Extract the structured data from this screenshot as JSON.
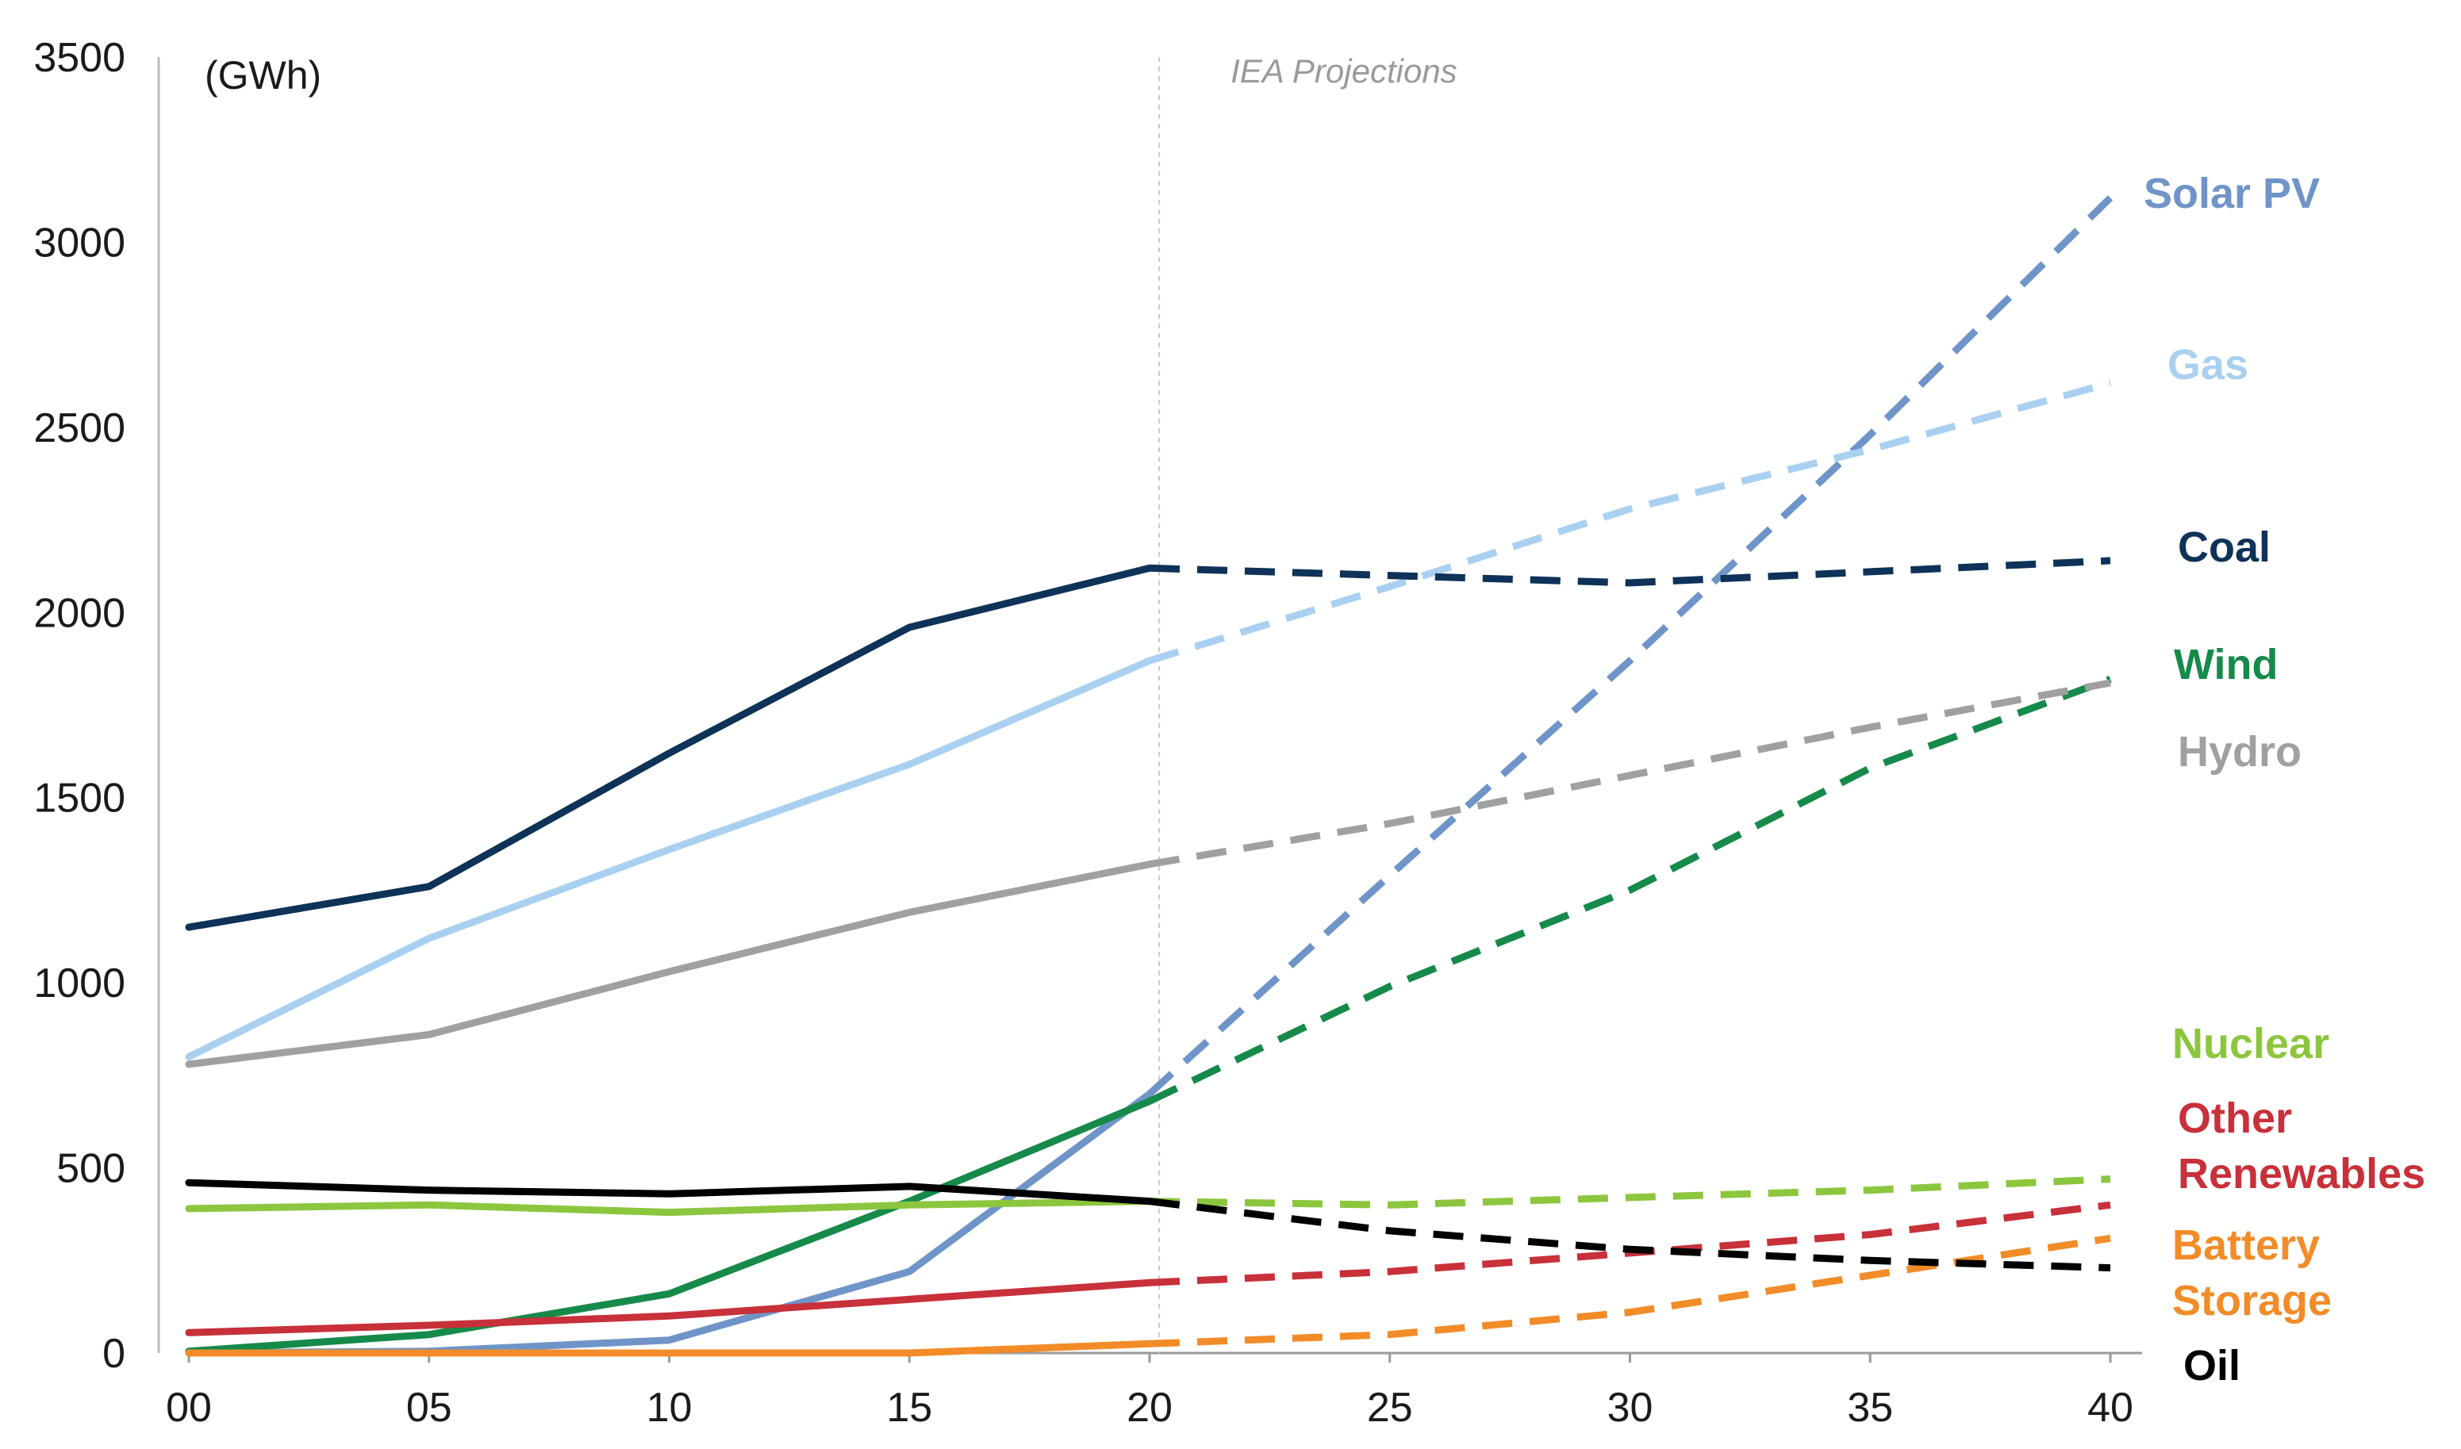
{
  "chart_data": {
    "type": "line",
    "title": "",
    "unit_label": "(GWh)",
    "xlabel": "",
    "ylabel": "",
    "ylim": [
      0,
      3500
    ],
    "xlim": [
      2000,
      2040
    ],
    "y_ticks": [
      "0",
      "500",
      "1000",
      "1500",
      "2000",
      "2500",
      "3000",
      "3500"
    ],
    "x_ticks": [
      "00",
      "05",
      "10",
      "15",
      "20",
      "25",
      "30",
      "35",
      "40"
    ],
    "projection_start": 2020.2,
    "annotation": "IEA Projections",
    "grid": false,
    "series": [
      {
        "name": "Solar PV",
        "color": "#6f94c8",
        "label_lines": [
          "Solar PV"
        ],
        "historical": {
          "x": [
            2000,
            2005,
            2010,
            2015,
            2020
          ],
          "y": [
            0,
            5,
            35,
            220,
            700
          ]
        },
        "projected": {
          "x": [
            2020,
            2025,
            2030,
            2035,
            2040
          ],
          "y": [
            700,
            1290,
            1870,
            2480,
            3120
          ]
        }
      },
      {
        "name": "Gas",
        "color": "#a9d0f0",
        "label_lines": [
          "Gas"
        ],
        "historical": {
          "x": [
            2000,
            2005,
            2010,
            2015,
            2020
          ],
          "y": [
            800,
            1120,
            1360,
            1590,
            1870
          ]
        },
        "projected": {
          "x": [
            2020,
            2025,
            2030,
            2035,
            2040
          ],
          "y": [
            1870,
            2070,
            2280,
            2440,
            2620
          ]
        }
      },
      {
        "name": "Coal",
        "color": "#0e3258",
        "label_lines": [
          "Coal"
        ],
        "historical": {
          "x": [
            2000,
            2005,
            2010,
            2015,
            2020
          ],
          "y": [
            1150,
            1260,
            1620,
            1960,
            2120
          ]
        },
        "projected": {
          "x": [
            2020,
            2025,
            2030,
            2035,
            2040
          ],
          "y": [
            2120,
            2100,
            2080,
            2110,
            2140
          ]
        }
      },
      {
        "name": "Wind",
        "color": "#168a4a",
        "label_lines": [
          "Wind"
        ],
        "historical": {
          "x": [
            2000,
            2005,
            2010,
            2015,
            2020
          ],
          "y": [
            5,
            50,
            160,
            410,
            680
          ]
        },
        "projected": {
          "x": [
            2020,
            2025,
            2030,
            2035,
            2040
          ],
          "y": [
            680,
            990,
            1250,
            1580,
            1820
          ]
        }
      },
      {
        "name": "Hydro",
        "color": "#a0a0a0",
        "label_lines": [
          "Hydro"
        ],
        "historical": {
          "x": [
            2000,
            2005,
            2010,
            2015,
            2020
          ],
          "y": [
            780,
            860,
            1030,
            1190,
            1320
          ]
        },
        "projected": {
          "x": [
            2020,
            2025,
            2030,
            2035,
            2040
          ],
          "y": [
            1320,
            1430,
            1560,
            1690,
            1810
          ]
        }
      },
      {
        "name": "Nuclear",
        "color": "#8cc63f",
        "label_lines": [
          "Nuclear"
        ],
        "historical": {
          "x": [
            2000,
            2005,
            2010,
            2015,
            2020
          ],
          "y": [
            390,
            400,
            380,
            400,
            410
          ]
        },
        "projected": {
          "x": [
            2020,
            2025,
            2030,
            2035,
            2040
          ],
          "y": [
            410,
            400,
            420,
            440,
            470
          ]
        }
      },
      {
        "name": "Other Renewables",
        "color": "#c8303a",
        "label_lines": [
          "Other",
          "Renewables"
        ],
        "historical": {
          "x": [
            2000,
            2005,
            2010,
            2015,
            2020
          ],
          "y": [
            55,
            75,
            100,
            145,
            190
          ]
        },
        "projected": {
          "x": [
            2020,
            2025,
            2030,
            2035,
            2040
          ],
          "y": [
            190,
            220,
            270,
            320,
            400
          ]
        }
      },
      {
        "name": "Battery Storage",
        "color": "#f28c28",
        "label_lines": [
          "Battery",
          "Storage"
        ],
        "historical": {
          "x": [
            2000,
            2005,
            2010,
            2015,
            2020
          ],
          "y": [
            0,
            0,
            0,
            0,
            25
          ]
        },
        "projected": {
          "x": [
            2020,
            2025,
            2030,
            2035,
            2040
          ],
          "y": [
            25,
            50,
            110,
            210,
            310
          ]
        }
      },
      {
        "name": "Oil",
        "color": "#000000",
        "label_lines": [
          "Oil"
        ],
        "historical": {
          "x": [
            2000,
            2005,
            2010,
            2015,
            2020
          ],
          "y": [
            460,
            440,
            430,
            450,
            410
          ]
        },
        "projected": {
          "x": [
            2020,
            2025,
            2030,
            2035,
            2040
          ],
          "y": [
            410,
            330,
            280,
            250,
            230
          ]
        }
      }
    ]
  }
}
